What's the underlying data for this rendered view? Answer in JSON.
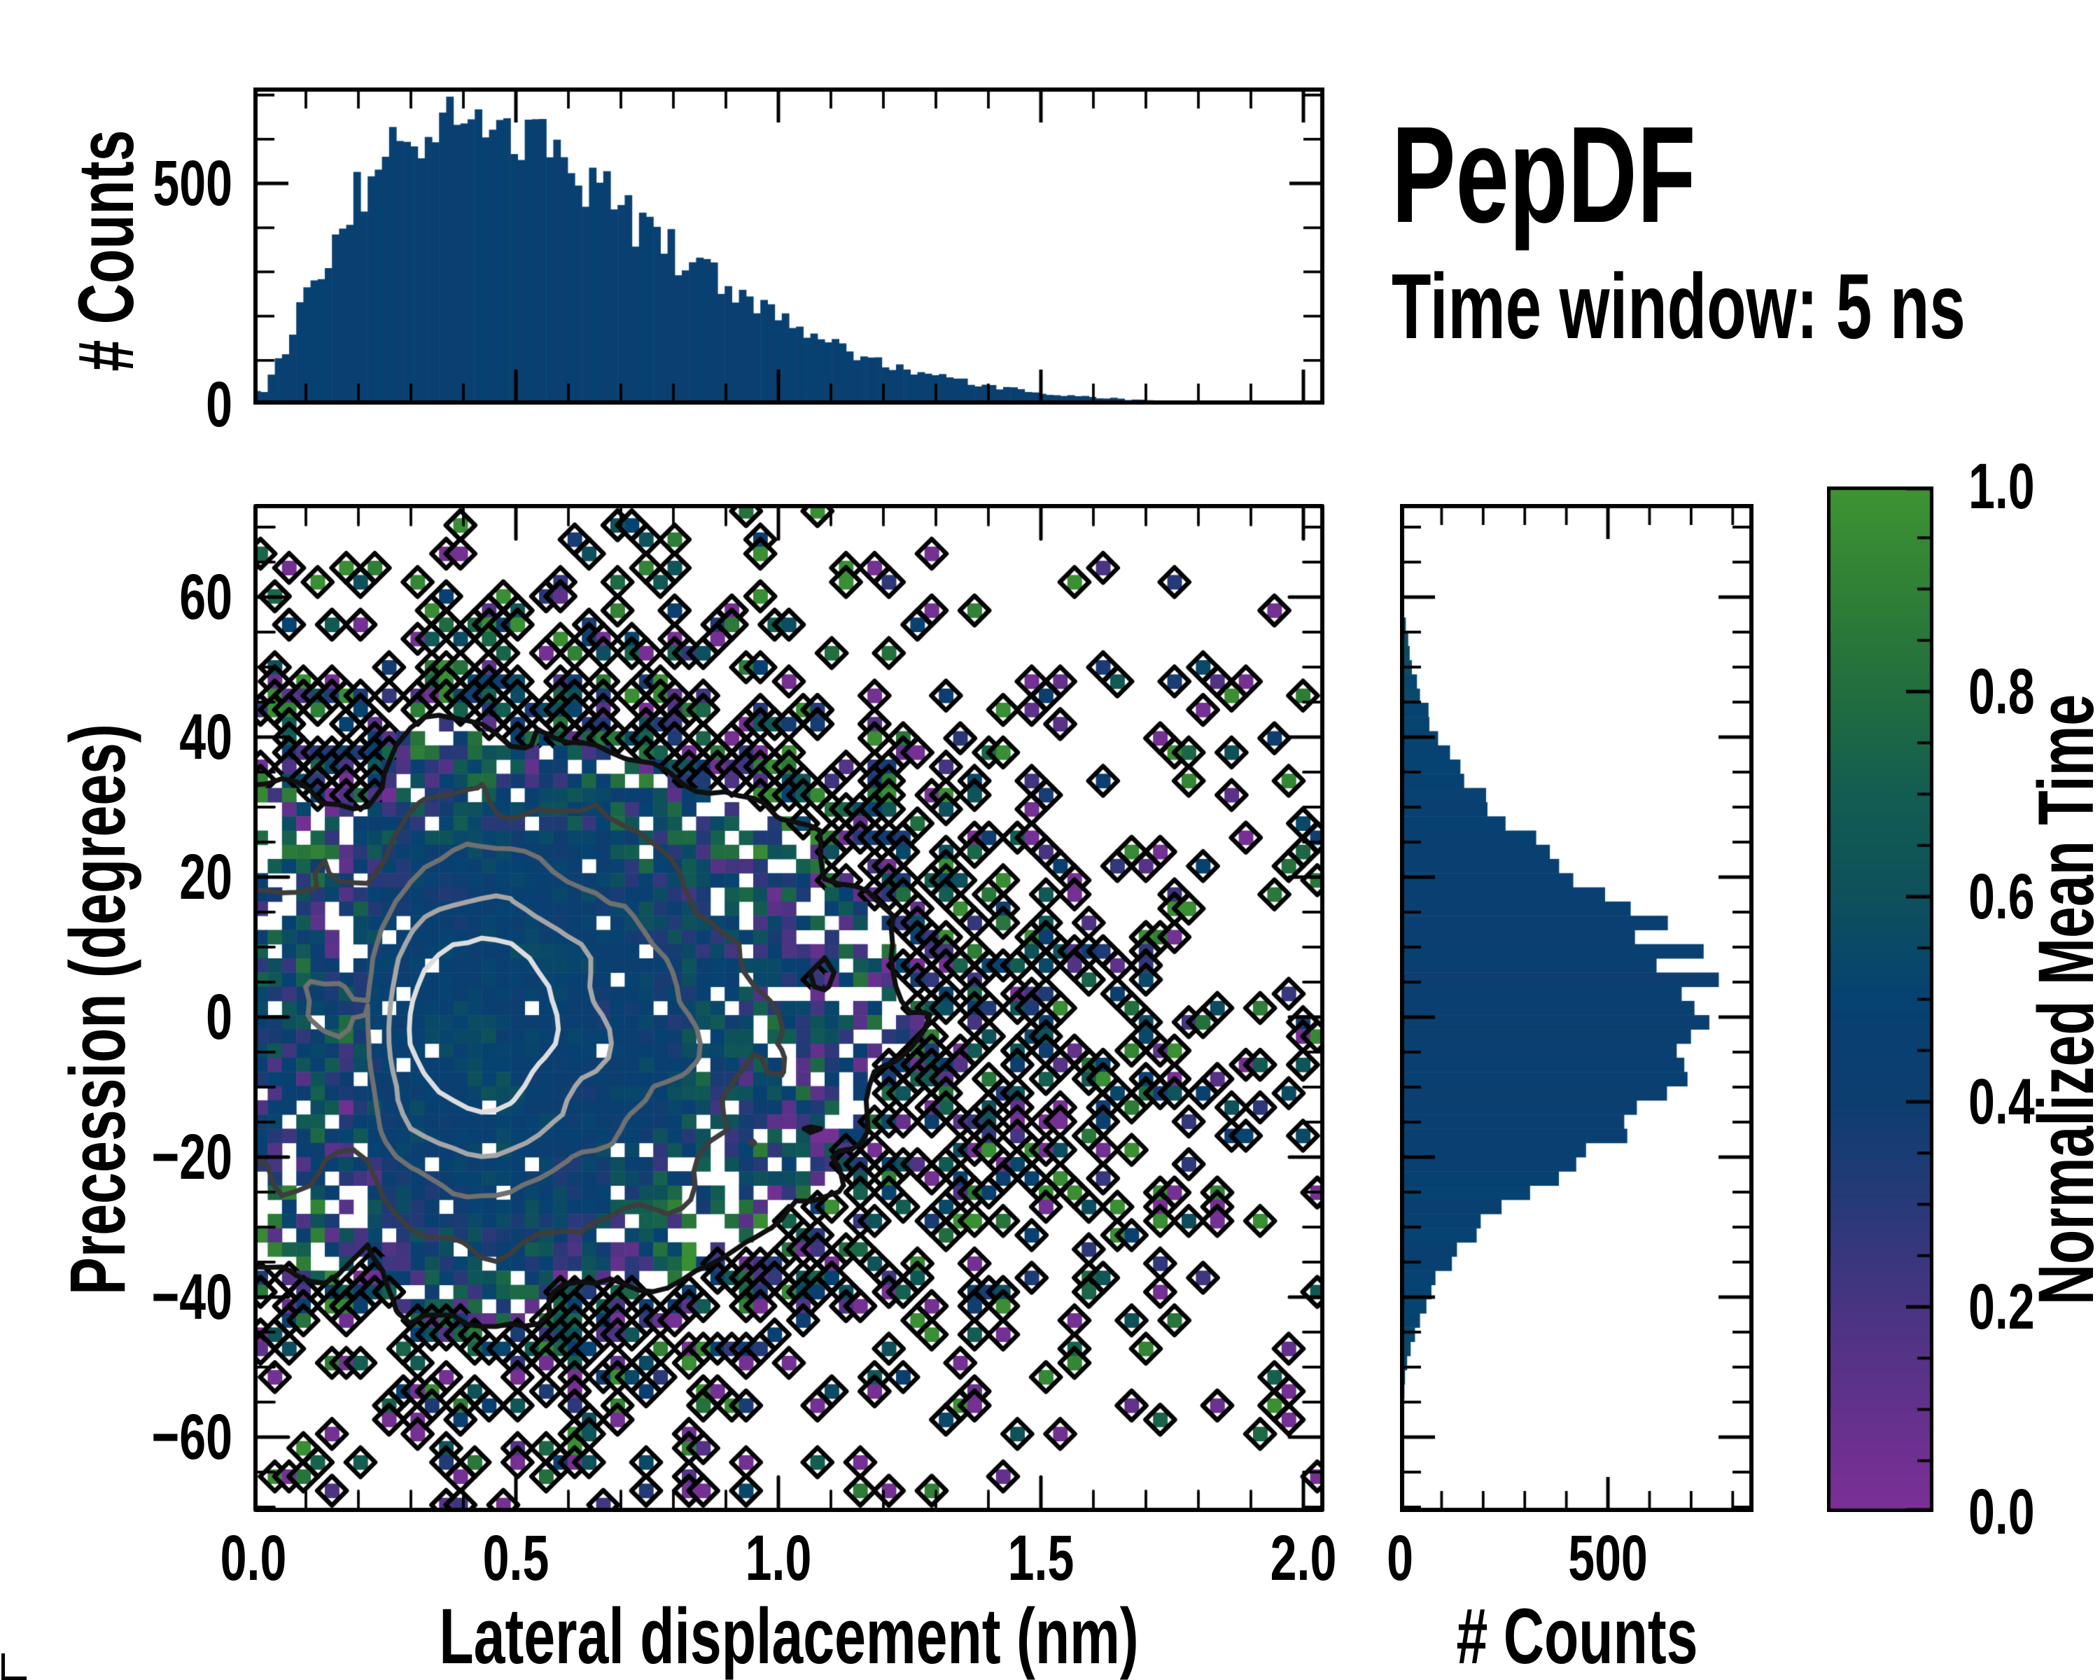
{
  "annotations": {
    "title": "PepDF",
    "subtitle": "Time window: 5 ns"
  },
  "style": {
    "background": "#ffffff",
    "spine_color": "#000000",
    "hist_bar_base": "#0A416F",
    "colormap": [
      [
        0.0,
        "#7D2F96"
      ],
      [
        0.1,
        "#63318C"
      ],
      [
        0.2,
        "#493482"
      ],
      [
        0.3,
        "#283978"
      ],
      [
        0.4,
        "#0D3E70"
      ],
      [
        0.5,
        "#064272"
      ],
      [
        0.6,
        "#0E505C"
      ],
      [
        0.7,
        "#125D52"
      ],
      [
        0.8,
        "#226E3E"
      ],
      [
        0.9,
        "#308036"
      ],
      [
        1.0,
        "#3E9432"
      ]
    ],
    "seed": 1337
  },
  "chart_data": [
    {
      "id": "top_histogram",
      "type": "bar",
      "ylabel": "# Counts",
      "ytick_labels": [
        "500",
        "0"
      ],
      "ytick_values": [
        500,
        0
      ],
      "ylim": [
        0,
        717
      ],
      "xlim": [
        0,
        2.04
      ],
      "bins": 150,
      "x_nm": [
        0.02,
        0.06,
        0.1,
        0.14,
        0.18,
        0.22,
        0.26,
        0.3,
        0.34,
        0.38,
        0.42,
        0.46,
        0.5,
        0.54,
        0.58,
        0.62,
        0.66,
        0.7,
        0.74,
        0.78,
        0.82,
        0.86,
        0.9,
        0.94,
        0.98,
        1.02,
        1.06,
        1.1,
        1.14,
        1.18,
        1.22,
        1.26,
        1.3,
        1.34,
        1.38,
        1.42,
        1.46,
        1.5,
        1.54,
        1.58,
        1.62,
        1.66,
        1.7,
        1.74,
        1.78,
        1.82,
        1.86,
        1.9,
        1.94,
        1.98,
        2.02
      ],
      "counts": [
        30,
        120,
        240,
        350,
        440,
        510,
        560,
        595,
        615,
        628,
        630,
        622,
        605,
        580,
        550,
        515,
        478,
        440,
        402,
        365,
        330,
        296,
        264,
        234,
        207,
        182,
        159,
        139,
        120,
        104,
        89,
        76,
        65,
        55,
        47,
        39,
        33,
        27,
        23,
        19,
        15,
        12,
        10,
        8,
        6,
        5,
        4,
        3,
        2,
        2,
        1
      ],
      "bar_value_center": 0.46
    },
    {
      "id": "main_heatmap",
      "type": "heatmap",
      "xlabel": "Lateral displacement (nm)",
      "ylabel": "Precession (degrees)",
      "xtick_labels": [
        "0.0",
        "0.5",
        "1.0",
        "1.5",
        "2.0"
      ],
      "xtick_values": [
        0,
        0.5,
        1.0,
        1.5,
        2.0
      ],
      "ytick_labels": [
        "60",
        "40",
        "20",
        "0",
        "−20",
        "−40",
        "−60"
      ],
      "ytick_values": [
        60,
        40,
        20,
        0,
        -20,
        -40,
        -60
      ],
      "xlim": [
        0,
        2.04
      ],
      "ylim": [
        -70.7,
        73.3
      ],
      "grid": {
        "nx": 75,
        "ny": 71
      },
      "cluster": {
        "center_x_nm": 0.42,
        "center_y_deg": -1,
        "occupancy_sigma_lnx": 0.62,
        "occupancy_sigma_y_deg": 26,
        "contour_sigma_lnx": 0.45,
        "contour_sigma_y_deg": 17,
        "occupancy_profile_rho": [
          0,
          1.1,
          1.5,
          1.9,
          2.4,
          3.0,
          3.6,
          4.4
        ],
        "occupancy_profile_p": [
          0.97,
          0.95,
          0.8,
          0.45,
          0.15,
          0.06,
          0.015,
          0
        ],
        "value_core_mean": 0.46,
        "value_core_spread": 0.14,
        "value_edge_spread": 1.5
      },
      "contour_levels": [
        0.045,
        0.16,
        0.34,
        0.56,
        0.78
      ],
      "contour_colors": [
        "#0f0f0f",
        "#3d3d3d",
        "#707070",
        "#a6a6a6",
        "#dedede"
      ]
    },
    {
      "id": "right_histogram",
      "type": "bar",
      "orientation": "horizontal",
      "xlabel": "# Counts",
      "xtick_labels": [
        "0",
        "500"
      ],
      "xtick_values": [
        0,
        500
      ],
      "xlim": [
        0,
        850
      ],
      "ylim": [
        -70.7,
        73.3
      ],
      "y_deg": [
        72,
        69,
        66,
        63,
        60,
        57,
        54,
        51,
        48,
        45,
        42,
        39,
        36,
        33,
        30,
        27,
        24,
        21,
        18,
        15,
        12,
        9,
        6,
        3,
        0,
        -3,
        -6,
        -9,
        -12,
        -15,
        -18,
        -21,
        -24,
        -27,
        -30,
        -33,
        -36,
        -39,
        -42,
        -45,
        -48,
        -51,
        -54,
        -57,
        -60,
        -63,
        -66,
        -69,
        -72
      ],
      "counts": [
        1,
        2,
        3,
        5,
        8,
        12,
        18,
        27,
        38,
        54,
        75,
        102,
        136,
        177,
        225,
        282,
        344,
        413,
        484,
        554,
        621,
        678,
        718,
        740,
        741,
        744,
        722,
        678,
        618,
        548,
        473,
        397,
        324,
        257,
        198,
        148,
        108,
        76,
        52,
        35,
        22,
        14,
        9,
        5,
        3,
        2,
        1,
        1,
        0
      ],
      "bar_value_center": 0.44,
      "bar_value_edge_boost": 0.22
    },
    {
      "id": "colorbar",
      "type": "colorbar",
      "label": "Normalized Mean Time",
      "tick_labels": [
        "1.0",
        "0.8",
        "0.6",
        "0.4",
        "0.2",
        "0.0"
      ],
      "tick_values": [
        1.0,
        0.8,
        0.6,
        0.4,
        0.2,
        0.0
      ],
      "range": [
        0,
        1
      ]
    }
  ]
}
